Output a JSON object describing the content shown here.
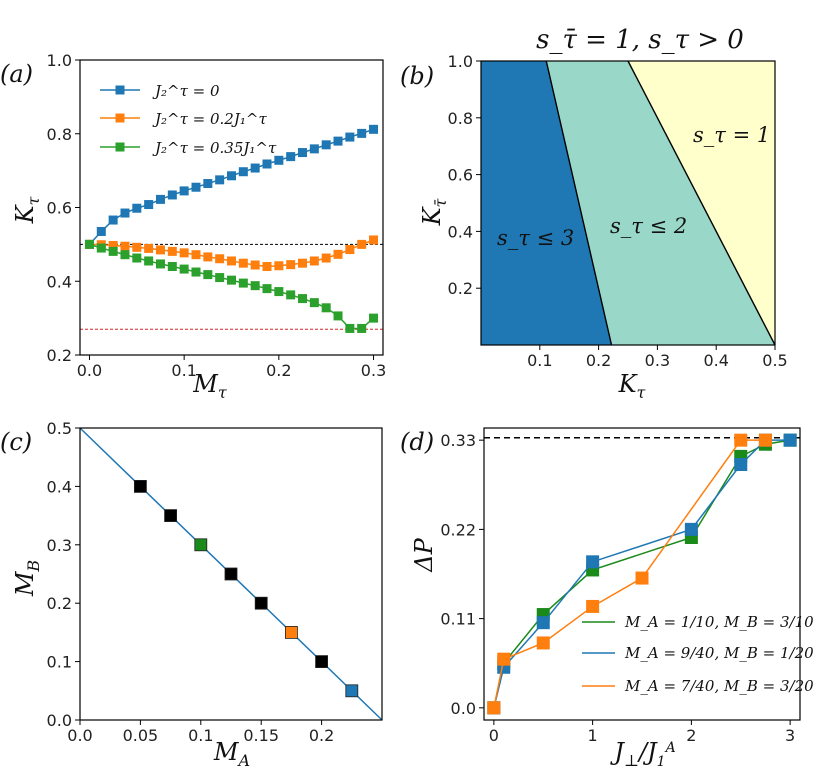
{
  "chart_data": [
    {
      "type": "line",
      "panel_label": "(a)",
      "xlabel": "M_τ",
      "ylabel": "K_τ",
      "xlim": [
        -0.01,
        0.31
      ],
      "ylim": [
        0.2,
        1.0
      ],
      "xticks": [
        "0.0",
        "0.1",
        "0.2",
        "0.3"
      ],
      "yticks": [
        "0.2",
        "0.4",
        "0.6",
        "0.8",
        "1.0"
      ],
      "legend_position": "upper-left",
      "series": [
        {
          "name": "J₂^τ = 0",
          "color": "#1f77b4",
          "x": [
            0,
            0.0125,
            0.025,
            0.0375,
            0.05,
            0.0625,
            0.075,
            0.0875,
            0.1,
            0.1125,
            0.125,
            0.1375,
            0.15,
            0.1625,
            0.175,
            0.1875,
            0.2,
            0.2125,
            0.225,
            0.2375,
            0.25,
            0.2625,
            0.275,
            0.2875,
            0.3
          ],
          "y": [
            0.5,
            0.535,
            0.566,
            0.585,
            0.598,
            0.608,
            0.622,
            0.634,
            0.645,
            0.655,
            0.665,
            0.675,
            0.686,
            0.697,
            0.707,
            0.718,
            0.728,
            0.738,
            0.749,
            0.759,
            0.77,
            0.78,
            0.791,
            0.801,
            0.812
          ]
        },
        {
          "name": "J₂^τ = 0.2J₁^τ",
          "color": "#ff7f0e",
          "x": [
            0,
            0.0125,
            0.025,
            0.0375,
            0.05,
            0.0625,
            0.075,
            0.0875,
            0.1,
            0.1125,
            0.125,
            0.1375,
            0.15,
            0.1625,
            0.175,
            0.1875,
            0.2,
            0.2125,
            0.225,
            0.2375,
            0.25,
            0.2625,
            0.275,
            0.2875,
            0.3
          ],
          "y": [
            0.5,
            0.499,
            0.497,
            0.495,
            0.492,
            0.489,
            0.485,
            0.481,
            0.477,
            0.472,
            0.466,
            0.461,
            0.455,
            0.449,
            0.444,
            0.44,
            0.442,
            0.445,
            0.449,
            0.455,
            0.463,
            0.473,
            0.486,
            0.5,
            0.512
          ]
        },
        {
          "name": "J₂^τ = 0.35J₁^τ",
          "color": "#2ca02c",
          "x": [
            0,
            0.0125,
            0.025,
            0.0375,
            0.05,
            0.0625,
            0.075,
            0.0875,
            0.1,
            0.1125,
            0.125,
            0.1375,
            0.15,
            0.1625,
            0.175,
            0.1875,
            0.2,
            0.2125,
            0.225,
            0.2375,
            0.25,
            0.2625,
            0.275,
            0.2875,
            0.3
          ],
          "y": [
            0.5,
            0.49,
            0.481,
            0.472,
            0.463,
            0.455,
            0.447,
            0.44,
            0.433,
            0.425,
            0.418,
            0.41,
            0.403,
            0.395,
            0.388,
            0.38,
            0.372,
            0.363,
            0.353,
            0.342,
            0.328,
            0.306,
            0.272,
            0.272,
            0.3
          ]
        }
      ],
      "reference_lines": [
        {
          "y": 0.5,
          "color": "#000000",
          "style": "dashed"
        },
        {
          "y": 0.27,
          "color": "#d62728",
          "style": "dashed"
        }
      ]
    },
    {
      "type": "area",
      "panel_label": "(b)",
      "title": "s_τ̄ = 1,  s_τ > 0",
      "xlabel": "K_τ",
      "ylabel": "K_τ̄",
      "xlim": [
        0,
        0.5
      ],
      "ylim": [
        0,
        1.0
      ],
      "xticks": [
        "0.1",
        "0.2",
        "0.3",
        "0.4",
        "0.5"
      ],
      "yticks": [
        "0.2",
        "0.4",
        "0.6",
        "0.8",
        "1.0"
      ],
      "boundaries": [
        {
          "x_at_top": 0.111,
          "x_at_bottom": 0.222
        },
        {
          "x_at_top": 0.25,
          "x_at_bottom": 0.5
        }
      ],
      "regions": [
        {
          "label": "s_τ ≤ 3",
          "color": "#1f78b4"
        },
        {
          "label": "s_τ ≤ 2",
          "color": "#99d8c9"
        },
        {
          "label": "s_τ = 1",
          "color": "#ffffcc"
        }
      ]
    },
    {
      "type": "scatter",
      "panel_label": "(c)",
      "xlabel": "M_A",
      "ylabel": "M_B",
      "xlim": [
        0,
        0.25
      ],
      "ylim": [
        0,
        0.5
      ],
      "xticks": [
        "0.0",
        "0.05",
        "0.1",
        "0.15",
        "0.2"
      ],
      "yticks": [
        "0.0",
        "0.1",
        "0.2",
        "0.3",
        "0.4",
        "0.5"
      ],
      "line": {
        "x": [
          0,
          0.25
        ],
        "y": [
          0.5,
          0.0
        ],
        "color": "#1f77b4"
      },
      "points": [
        {
          "x": 0.05,
          "y": 0.4,
          "color": "#000000"
        },
        {
          "x": 0.075,
          "y": 0.35,
          "color": "#000000"
        },
        {
          "x": 0.1,
          "y": 0.3,
          "color": "#1a8a1a"
        },
        {
          "x": 0.125,
          "y": 0.25,
          "color": "#000000"
        },
        {
          "x": 0.15,
          "y": 0.2,
          "color": "#000000"
        },
        {
          "x": 0.175,
          "y": 0.15,
          "color": "#ff7f0e"
        },
        {
          "x": 0.2,
          "y": 0.1,
          "color": "#000000"
        },
        {
          "x": 0.225,
          "y": 0.05,
          "color": "#1f77b4"
        }
      ]
    },
    {
      "type": "line",
      "panel_label": "(d)",
      "xlabel": "J_⊥/J₁^A",
      "ylabel": "ΔP",
      "xlim": [
        -0.1,
        3.1
      ],
      "ylim": [
        -0.015,
        0.345
      ],
      "xticks": [
        "0",
        "1",
        "2",
        "3"
      ],
      "yticks": [
        "0.0",
        "0.11",
        "0.22",
        "0.33"
      ],
      "legend_position": "lower-right",
      "reference_lines": [
        {
          "y": 0.333,
          "color": "#000000",
          "style": "dashed"
        }
      ],
      "series": [
        {
          "name": "M_A = 1/10, M_B = 3/10",
          "color": "#1a8a1a",
          "x": [
            0,
            0.1,
            0.5,
            1.0,
            2.0,
            2.5,
            2.75,
            3.0
          ],
          "y": [
            0.0,
            0.055,
            0.115,
            0.17,
            0.21,
            0.31,
            0.325,
            0.33
          ]
        },
        {
          "name": "M_A = 9/40, M_B = 1/20",
          "color": "#1f77b4",
          "x": [
            0,
            0.1,
            0.5,
            1.0,
            2.0,
            2.5,
            2.75,
            3.0
          ],
          "y": [
            0.0,
            0.05,
            0.105,
            0.18,
            0.22,
            0.3,
            0.33,
            0.33
          ]
        },
        {
          "name": "M_A = 7/40, M_B = 3/20",
          "color": "#ff7f0e",
          "x": [
            0,
            0.1,
            0.5,
            1.0,
            1.5,
            2.5,
            2.75
          ],
          "y": [
            0.0,
            0.06,
            0.08,
            0.125,
            0.16,
            0.33,
            0.33
          ]
        }
      ]
    }
  ]
}
